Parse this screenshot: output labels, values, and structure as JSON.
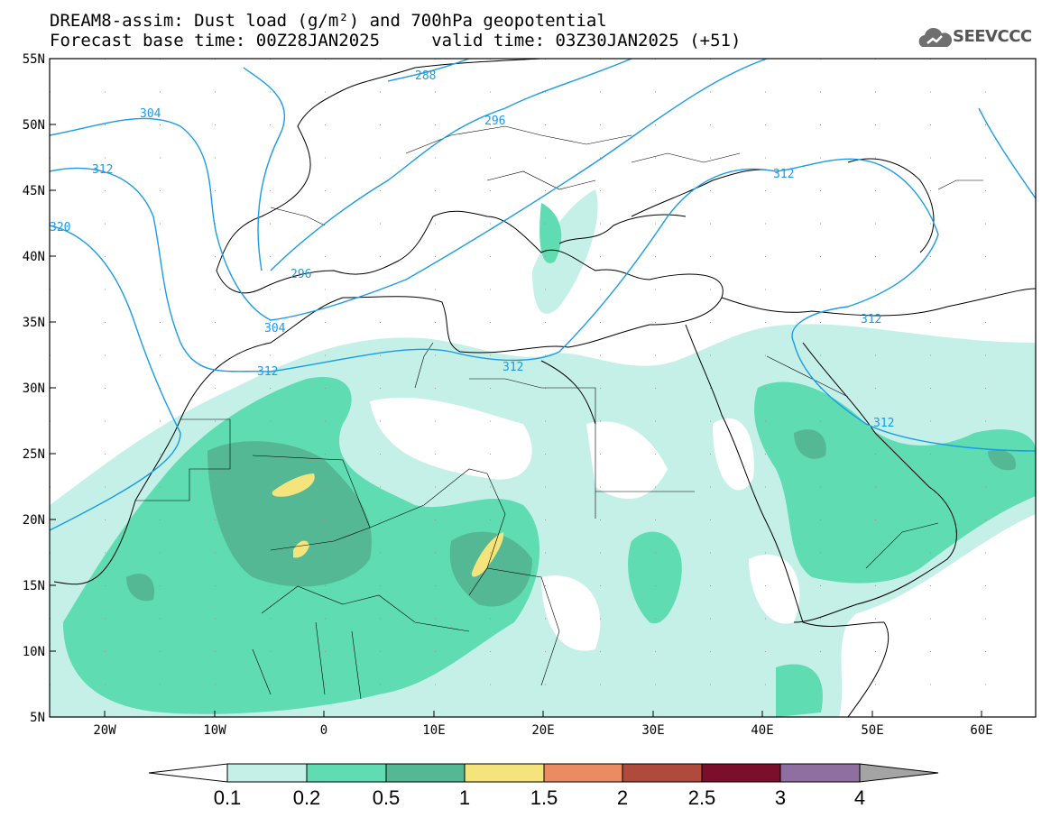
{
  "title": {
    "line1": "DREAM8-assim: Dust load (g/m²) and 700hPa geopotential",
    "line2": "Forecast base time: 00Z28JAN2025     valid time: 03Z30JAN2025 (+51)"
  },
  "logo": {
    "text": "SEEVCCC",
    "icon": "cloud-icon"
  },
  "axes": {
    "lon_labels": [
      "20W",
      "10W",
      "0",
      "10E",
      "20E",
      "30E",
      "40E",
      "50E",
      "60E"
    ],
    "lat_labels": [
      "55N",
      "50N",
      "45N",
      "40N",
      "35N",
      "30N",
      "25N",
      "20N",
      "15N",
      "10N",
      "5N"
    ],
    "lon_range": [
      -25,
      65
    ],
    "lat_range": [
      5,
      55
    ]
  },
  "contours": {
    "color": "#1a9be6",
    "labels": [
      "288",
      "296",
      "304",
      "312",
      "320",
      "296",
      "304",
      "312",
      "312",
      "312",
      "312",
      "312"
    ]
  },
  "colorbar": {
    "labels": [
      "0.1",
      "0.2",
      "0.5",
      "1",
      "1.5",
      "2",
      "2.5",
      "3",
      "4"
    ],
    "colors": [
      "#c4f0e8",
      "#5fdcb1",
      "#55b894",
      "#f5e47c",
      "#ea8b62",
      "#b04a3c",
      "#7b0e2a",
      "#8f6fa2",
      "#a4a4a4"
    ],
    "under_color": "#ffffff"
  }
}
